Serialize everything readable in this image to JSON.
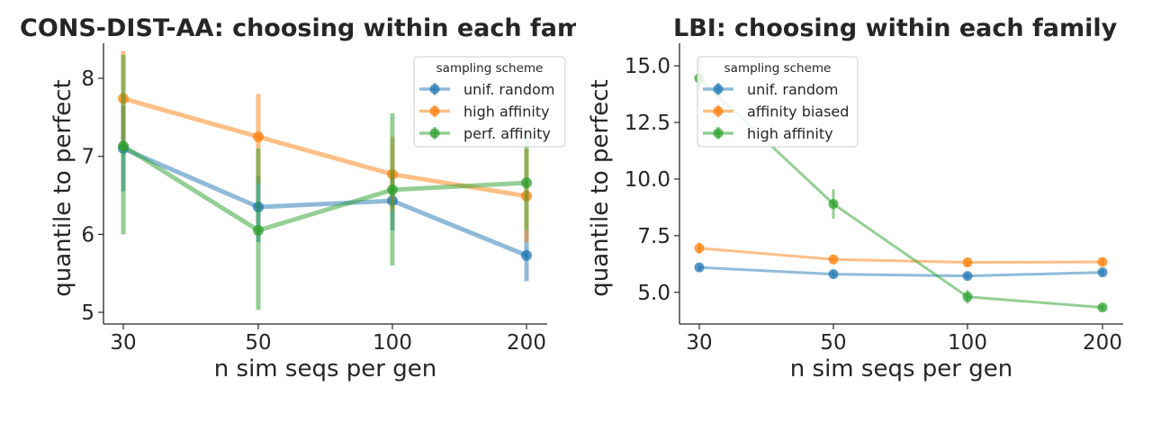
{
  "colors": {
    "blue": "#1f77b4",
    "orange": "#ff7f0e",
    "green": "#2ca02c",
    "axis": "#262626"
  },
  "chart_data": [
    {
      "type": "line",
      "title": "CONS-DIST-AA: choosing within each family",
      "xlabel": "n sim seqs per gen",
      "ylabel": "quantile to perfect",
      "categories": [
        "30",
        "50",
        "100",
        "200"
      ],
      "yticks": [
        "5",
        "6",
        "7",
        "8"
      ],
      "ylim": [
        4.85,
        8.45
      ],
      "legend_title": "sampling scheme",
      "legend_position": "top-right",
      "series": [
        {
          "name": "unif. random",
          "color": "blue",
          "values": [
            7.1,
            6.35,
            6.43,
            5.73
          ],
          "err_low": [
            6.55,
            5.9,
            6.05,
            5.4
          ],
          "err_high": [
            7.65,
            6.75,
            6.8,
            6.05
          ]
        },
        {
          "name": "high affinity",
          "color": "orange",
          "values": [
            7.74,
            7.25,
            6.77,
            6.49
          ],
          "err_low": [
            7.1,
            6.65,
            6.3,
            5.9
          ],
          "err_high": [
            8.35,
            7.8,
            7.25,
            7.1
          ]
        },
        {
          "name": "perf. affinity",
          "color": "green",
          "values": [
            7.13,
            6.05,
            6.57,
            6.66
          ],
          "err_low": [
            6.0,
            5.03,
            5.6,
            6.05
          ],
          "err_high": [
            8.3,
            7.1,
            7.55,
            7.3
          ]
        }
      ]
    },
    {
      "type": "line",
      "title": "LBI: choosing within each family",
      "xlabel": "n sim seqs per gen",
      "ylabel": "quantile to perfect",
      "categories": [
        "30",
        "50",
        "100",
        "200"
      ],
      "yticks": [
        "5.0",
        "7.5",
        "10.0",
        "12.5",
        "15.0"
      ],
      "ylim": [
        3.6,
        16.0
      ],
      "legend_title": "sampling scheme",
      "legend_position": "top-left",
      "series": [
        {
          "name": "unif. random",
          "color": "blue",
          "values": [
            6.1,
            5.8,
            5.72,
            5.88
          ],
          "err_low": [
            5.95,
            5.65,
            5.57,
            5.73
          ],
          "err_high": [
            6.25,
            5.95,
            5.87,
            6.03
          ]
        },
        {
          "name": "affinity biased",
          "color": "orange",
          "values": [
            6.95,
            6.45,
            6.32,
            6.34
          ],
          "err_low": [
            6.7,
            6.25,
            6.15,
            6.17
          ],
          "err_high": [
            7.2,
            6.65,
            6.5,
            6.5
          ]
        },
        {
          "name": "high affinity",
          "color": "green",
          "values": [
            14.45,
            8.9,
            4.8,
            4.33
          ],
          "err_low": [
            13.9,
            8.25,
            4.5,
            4.2
          ],
          "err_high": [
            15.3,
            9.55,
            5.1,
            4.46
          ]
        }
      ]
    }
  ]
}
